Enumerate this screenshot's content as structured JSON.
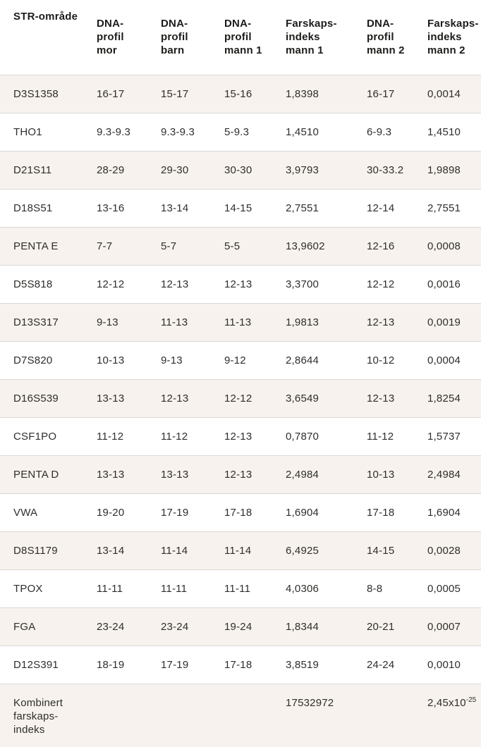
{
  "colors": {
    "stripe": "#f7f2ed",
    "row-alt": "#ffffff",
    "divider": "#d9d9d9",
    "bottom-border": "#c8c8c8",
    "header-text": "#1c1c1a",
    "body-text": "#2e2e2c",
    "page-bg": "#ffffff"
  },
  "chart_data": {
    "type": "table",
    "headers": [
      "STR-område",
      "DNA-\nprofil\nmor",
      "DNA-\nprofil\nbarn",
      "DNA-\nprofil\nmann 1",
      "Farskaps-\nindeks\nmann 1",
      "DNA-\nprofil\nmann 2",
      "Farskaps-\nindeks\nmann 2"
    ],
    "rows": [
      [
        "D3S1358",
        "16-17",
        "15-17",
        "15-16",
        "1,8398",
        "16-17",
        "0,0014"
      ],
      [
        "THO1",
        "9.3-9.3",
        "9.3-9.3",
        "5-9.3",
        "1,4510",
        "6-9.3",
        "1,4510"
      ],
      [
        "D21S11",
        "28-29",
        "29-30",
        "30-30",
        "3,9793",
        "30-33.2",
        "1,9898"
      ],
      [
        "D18S51",
        "13-16",
        "13-14",
        "14-15",
        "2,7551",
        "12-14",
        "2,7551"
      ],
      [
        "PENTA E",
        "7-7",
        "5-7",
        "5-5",
        "13,9602",
        "12-16",
        "0,0008"
      ],
      [
        "D5S818",
        "12-12",
        "12-13",
        "12-13",
        "3,3700",
        "12-12",
        "0,0016"
      ],
      [
        "D13S317",
        "9-13",
        "11-13",
        "11-13",
        "1,9813",
        "12-13",
        "0,0019"
      ],
      [
        "D7S820",
        "10-13",
        "9-13",
        "9-12",
        "2,8644",
        "10-12",
        "0,0004"
      ],
      [
        "D16S539",
        "13-13",
        "12-13",
        "12-12",
        "3,6549",
        "12-13",
        "1,8254"
      ],
      [
        "CSF1PO",
        "11-12",
        "11-12",
        "12-13",
        "0,7870",
        "11-12",
        "1,5737"
      ],
      [
        "PENTA D",
        "13-13",
        "13-13",
        "12-13",
        "2,4984",
        "10-13",
        "2,4984"
      ],
      [
        "VWA",
        "19-20",
        "17-19",
        "17-18",
        "1,6904",
        "17-18",
        "1,6904"
      ],
      [
        "D8S1179",
        "13-14",
        "11-14",
        "11-14",
        "6,4925",
        "14-15",
        "0,0028"
      ],
      [
        "TPOX",
        "11-11",
        "11-11",
        "11-11",
        "4,0306",
        "8-8",
        "0,0005"
      ],
      [
        "FGA",
        "23-24",
        "23-24",
        "19-24",
        "1,8344",
        "20-21",
        "0,0007"
      ],
      [
        "D12S391",
        "18-19",
        "17-19",
        "17-18",
        "3,8519",
        "24-24",
        "0,0010"
      ]
    ],
    "summary": {
      "label": "Kombinert\nfarskaps-\nindeks",
      "combined_index_mann_1": "17532972",
      "combined_index_mann_2_base": "2,45x10",
      "combined_index_mann_2_exponent": "-25"
    }
  }
}
